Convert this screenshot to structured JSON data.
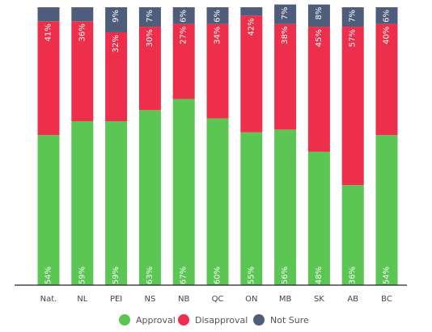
{
  "chart_data": {
    "type": "bar",
    "stacked": true,
    "orientation": "vertical",
    "categories": [
      "Nat.",
      "NL",
      "PEI",
      "NS",
      "NB",
      "QC",
      "ON",
      "MB",
      "SK",
      "AB",
      "BC"
    ],
    "series": [
      {
        "name": "Approval",
        "color": "#5bc653",
        "values": [
          54,
          59,
          59,
          63,
          67,
          60,
          55,
          56,
          48,
          36,
          54
        ]
      },
      {
        "name": "Disapproval",
        "color": "#ee2f4b",
        "values": [
          41,
          36,
          32,
          30,
          27,
          34,
          42,
          38,
          45,
          57,
          40
        ]
      },
      {
        "name": "Not Sure",
        "color": "#4d5d7b",
        "values": [
          5,
          5,
          9,
          7,
          6,
          6,
          3,
          7,
          8,
          7,
          6
        ]
      }
    ],
    "labels": [
      [
        "54%",
        "59%",
        "59%",
        "63%",
        "67%",
        "60%",
        "55%",
        "56%",
        "48%",
        "36%",
        "54%"
      ],
      [
        "41%",
        "36%",
        "32%",
        "30%",
        "27%",
        "34%",
        "42%",
        "38%",
        "45%",
        "57%",
        "40%"
      ],
      [
        "",
        "",
        "9%",
        "7%",
        "6%",
        "6%",
        "",
        "7%",
        "8%",
        "7%",
        "6%"
      ]
    ],
    "ylim": [
      0,
      100
    ],
    "grid": false,
    "legend_position": "bottom-center",
    "title": "",
    "xlabel": "",
    "ylabel": ""
  }
}
